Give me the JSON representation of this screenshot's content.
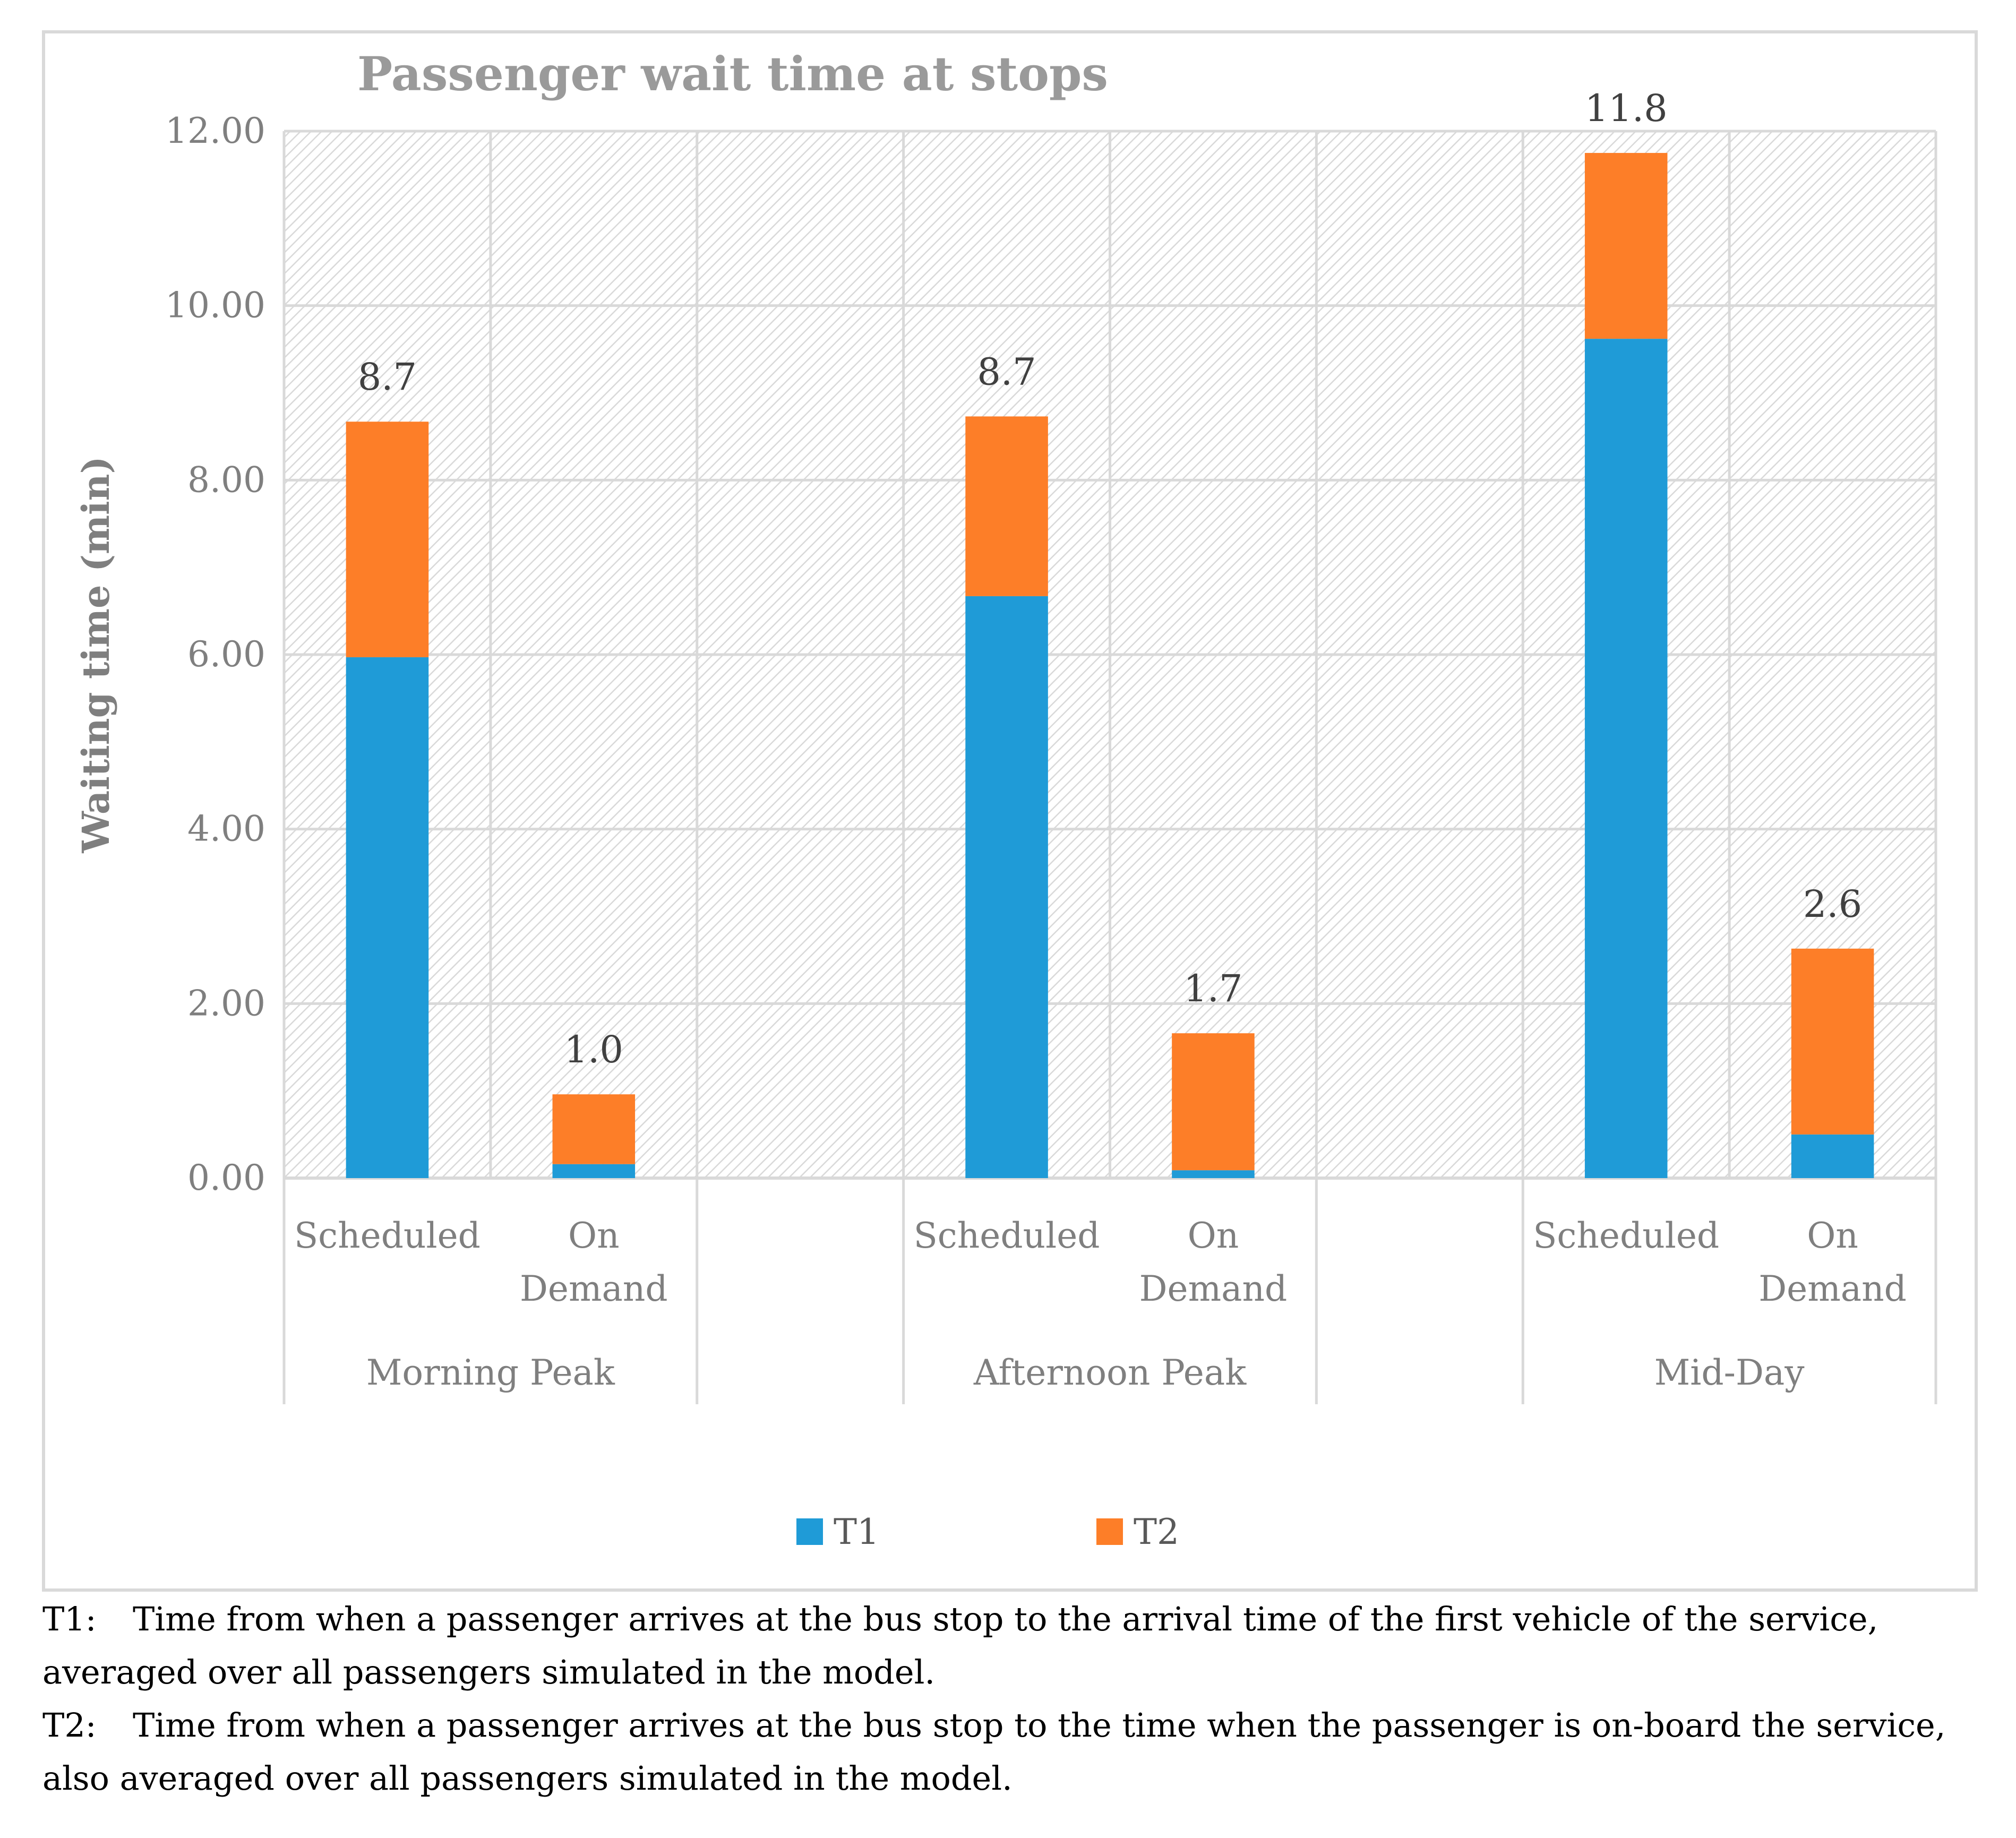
{
  "chart_data": {
    "type": "bar",
    "stacked": true,
    "title": "Passenger wait time at stops",
    "ylabel": "Waiting time (min)",
    "xlabel": "",
    "ylim": [
      0,
      12
    ],
    "yticks": [
      "0.00",
      "2.00",
      "4.00",
      "6.00",
      "8.00",
      "10.00",
      "12.00"
    ],
    "ytick_values": [
      0,
      2,
      4,
      6,
      8,
      10,
      12
    ],
    "groups": [
      {
        "label": "Morning Peak",
        "categories": [
          "Scheduled",
          "On Demand"
        ]
      },
      {
        "label": "Afternoon Peak",
        "categories": [
          "Scheduled",
          "On Demand"
        ]
      },
      {
        "label": "Mid-Day",
        "categories": [
          "Scheduled",
          "On Demand"
        ]
      }
    ],
    "categories": [
      "Scheduled",
      "On Demand",
      "Scheduled",
      "On Demand",
      "Scheduled",
      "On Demand"
    ],
    "series": [
      {
        "name": "T1",
        "color": "#1f9bd7",
        "values": [
          5.97,
          0.16,
          6.67,
          0.09,
          9.62,
          0.5
        ]
      },
      {
        "name": "T2",
        "color": "#fd7e28",
        "values": [
          2.7,
          0.8,
          2.06,
          1.57,
          2.13,
          2.13
        ]
      }
    ],
    "totals_labels": [
      "8.7",
      "1.0",
      "8.7",
      "1.7",
      "11.8",
      "2.6"
    ],
    "legend_position": "bottom",
    "grid": true
  },
  "notes": [
    {
      "key": "T1:",
      "text": "Time from when a passenger arrives at the bus stop to the arrival time of the first vehicle of the service,",
      "cont": "averaged over all passengers simulated in the model."
    },
    {
      "key": "T2:",
      "text": "Time from when a passenger arrives at the bus stop to the time when the passenger is on-board the service,",
      "cont": "also averaged over all passengers simulated in the model."
    }
  ]
}
